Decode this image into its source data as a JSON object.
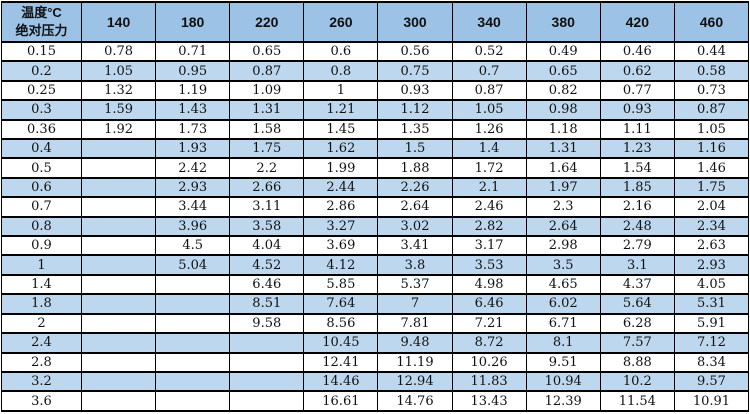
{
  "colors": {
    "header_bg": "#9CC2E5",
    "band_bg": "#BDD7EE",
    "row_bg": "#FFFFFF",
    "grid": "#000000",
    "text": "#111111"
  },
  "table": {
    "corner_header": {
      "line1": "温度°C",
      "line2": "绝对压力"
    },
    "columns": [
      "140",
      "180",
      "220",
      "260",
      "300",
      "340",
      "380",
      "420",
      "460"
    ],
    "rows": [
      {
        "pressure": "0.15",
        "values": [
          "0.78",
          "0.71",
          "0.65",
          "0.6",
          "0.56",
          "0.52",
          "0.49",
          "0.46",
          "0.44"
        ]
      },
      {
        "pressure": "0.2",
        "values": [
          "1.05",
          "0.95",
          "0.87",
          "0.8",
          "0.75",
          "0.7",
          "0.65",
          "0.62",
          "0.58"
        ]
      },
      {
        "pressure": "0.25",
        "values": [
          "1.32",
          "1.19",
          "1.09",
          "1",
          "0.93",
          "0.87",
          "0.82",
          "0.77",
          "0.73"
        ]
      },
      {
        "pressure": "0.3",
        "values": [
          "1.59",
          "1.43",
          "1.31",
          "1.21",
          "1.12",
          "1.05",
          "0.98",
          "0.93",
          "0.87"
        ]
      },
      {
        "pressure": "0.36",
        "values": [
          "1.92",
          "1.73",
          "1.58",
          "1.45",
          "1.35",
          "1.26",
          "1.18",
          "1.11",
          "1.05"
        ]
      },
      {
        "pressure": "0.4",
        "values": [
          "",
          "1.93",
          "1.75",
          "1.62",
          "1.5",
          "1.4",
          "1.31",
          "1.23",
          "1.16"
        ]
      },
      {
        "pressure": "0.5",
        "values": [
          "",
          "2.42",
          "2.2",
          "1.99",
          "1.88",
          "1.72",
          "1.64",
          "1.54",
          "1.46"
        ]
      },
      {
        "pressure": "0.6",
        "values": [
          "",
          "2.93",
          "2.66",
          "2.44",
          "2.26",
          "2.1",
          "1.97",
          "1.85",
          "1.75"
        ]
      },
      {
        "pressure": "0.7",
        "values": [
          "",
          "3.44",
          "3.11",
          "2.86",
          "2.64",
          "2.46",
          "2.3",
          "2.16",
          "2.04"
        ]
      },
      {
        "pressure": "0.8",
        "values": [
          "",
          "3.96",
          "3.58",
          "3.27",
          "3.02",
          "2.82",
          "2.64",
          "2.48",
          "2.34"
        ]
      },
      {
        "pressure": "0.9",
        "values": [
          "",
          "4.5",
          "4.04",
          "3.69",
          "3.41",
          "3.17",
          "2.98",
          "2.79",
          "2.63"
        ]
      },
      {
        "pressure": "1",
        "values": [
          "",
          "5.04",
          "4.52",
          "4.12",
          "3.8",
          "3.53",
          "3.5",
          "3.1",
          "2.93"
        ]
      },
      {
        "pressure": "1.4",
        "values": [
          "",
          "",
          "6.46",
          "5.85",
          "5.37",
          "4.98",
          "4.65",
          "4.37",
          "4.05"
        ]
      },
      {
        "pressure": "1.8",
        "values": [
          "",
          "",
          "8.51",
          "7.64",
          "7",
          "6.46",
          "6.02",
          "5.64",
          "5.31"
        ]
      },
      {
        "pressure": "2",
        "values": [
          "",
          "",
          "9.58",
          "8.56",
          "7.81",
          "7.21",
          "6.71",
          "6.28",
          "5.91"
        ]
      },
      {
        "pressure": "2.4",
        "values": [
          "",
          "",
          "",
          "10.45",
          "9.48",
          "8.72",
          "8.1",
          "7.57",
          "7.12"
        ]
      },
      {
        "pressure": "2.8",
        "values": [
          "",
          "",
          "",
          "12.41",
          "11.19",
          "10.26",
          "9.51",
          "8.88",
          "8.34"
        ]
      },
      {
        "pressure": "3.2",
        "values": [
          "",
          "",
          "",
          "14.46",
          "12.94",
          "11.83",
          "10.94",
          "10.2",
          "9.57"
        ]
      },
      {
        "pressure": "3.6",
        "values": [
          "",
          "",
          "",
          "16.61",
          "14.76",
          "13.43",
          "12.39",
          "11.54",
          "10.91"
        ]
      }
    ]
  },
  "chart_data": {
    "type": "table",
    "title": "",
    "corner_label": "温度°C / 绝对压力",
    "column_header_meaning": "温度 (Temperature, °C)",
    "row_header_meaning": "绝对压力 (Absolute pressure)",
    "columns_temperature_c": [
      140,
      180,
      220,
      260,
      300,
      340,
      380,
      420,
      460
    ],
    "rows_absolute_pressure": [
      0.15,
      0.2,
      0.25,
      0.3,
      0.36,
      0.4,
      0.5,
      0.6,
      0.7,
      0.8,
      0.9,
      1,
      1.4,
      1.8,
      2,
      2.4,
      2.8,
      3.2,
      3.6
    ],
    "values": [
      [
        0.78,
        0.71,
        0.65,
        0.6,
        0.56,
        0.52,
        0.49,
        0.46,
        0.44
      ],
      [
        1.05,
        0.95,
        0.87,
        0.8,
        0.75,
        0.7,
        0.65,
        0.62,
        0.58
      ],
      [
        1.32,
        1.19,
        1.09,
        1,
        0.93,
        0.87,
        0.82,
        0.77,
        0.73
      ],
      [
        1.59,
        1.43,
        1.31,
        1.21,
        1.12,
        1.05,
        0.98,
        0.93,
        0.87
      ],
      [
        1.92,
        1.73,
        1.58,
        1.45,
        1.35,
        1.26,
        1.18,
        1.11,
        1.05
      ],
      [
        null,
        1.93,
        1.75,
        1.62,
        1.5,
        1.4,
        1.31,
        1.23,
        1.16
      ],
      [
        null,
        2.42,
        2.2,
        1.99,
        1.88,
        1.72,
        1.64,
        1.54,
        1.46
      ],
      [
        null,
        2.93,
        2.66,
        2.44,
        2.26,
        2.1,
        1.97,
        1.85,
        1.75
      ],
      [
        null,
        3.44,
        3.11,
        2.86,
        2.64,
        2.46,
        2.3,
        2.16,
        2.04
      ],
      [
        null,
        3.96,
        3.58,
        3.27,
        3.02,
        2.82,
        2.64,
        2.48,
        2.34
      ],
      [
        null,
        4.5,
        4.04,
        3.69,
        3.41,
        3.17,
        2.98,
        2.79,
        2.63
      ],
      [
        null,
        5.04,
        4.52,
        4.12,
        3.8,
        3.53,
        3.5,
        3.1,
        2.93
      ],
      [
        null,
        null,
        6.46,
        5.85,
        5.37,
        4.98,
        4.65,
        4.37,
        4.05
      ],
      [
        null,
        null,
        8.51,
        7.64,
        7,
        6.46,
        6.02,
        5.64,
        5.31
      ],
      [
        null,
        null,
        9.58,
        8.56,
        7.81,
        7.21,
        6.71,
        6.28,
        5.91
      ],
      [
        null,
        null,
        null,
        10.45,
        9.48,
        8.72,
        8.1,
        7.57,
        7.12
      ],
      [
        null,
        null,
        null,
        12.41,
        11.19,
        10.26,
        9.51,
        8.88,
        8.34
      ],
      [
        null,
        null,
        null,
        14.46,
        12.94,
        11.83,
        10.94,
        10.2,
        9.57
      ],
      [
        null,
        null,
        null,
        16.61,
        14.76,
        13.43,
        12.39,
        11.54,
        10.91
      ]
    ],
    "layout": {
      "banded_rows": true,
      "band_color": "#BDD7EE",
      "header_color": "#9CC2E5",
      "grid": true
    }
  }
}
